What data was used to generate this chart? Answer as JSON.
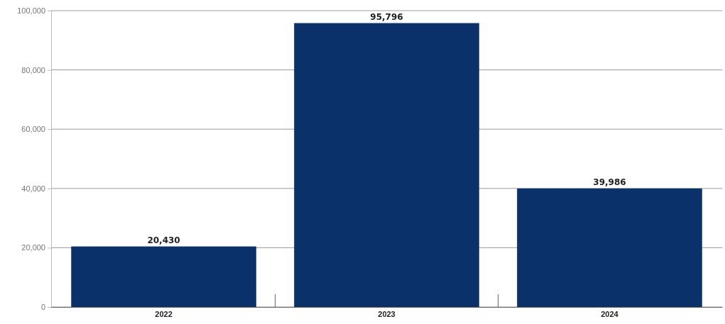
{
  "chart_data": {
    "type": "bar",
    "categories": [
      "2022",
      "2023",
      "2024"
    ],
    "values": [
      20430,
      95796,
      39986
    ],
    "color": "#0b316b",
    "ylim": [
      0,
      100000
    ],
    "yticks": [
      {
        "value": 0,
        "label": "0"
      },
      {
        "value": 20000,
        "label": "20,000"
      },
      {
        "value": 40000,
        "label": "40,000"
      },
      {
        "value": 60000,
        "label": "60,000"
      },
      {
        "value": 80000,
        "label": "80,000"
      },
      {
        "value": 100000,
        "label": "100,000"
      }
    ],
    "grid": "y",
    "value_labels": [
      "20,430",
      "95,796",
      "39,986"
    ]
  }
}
